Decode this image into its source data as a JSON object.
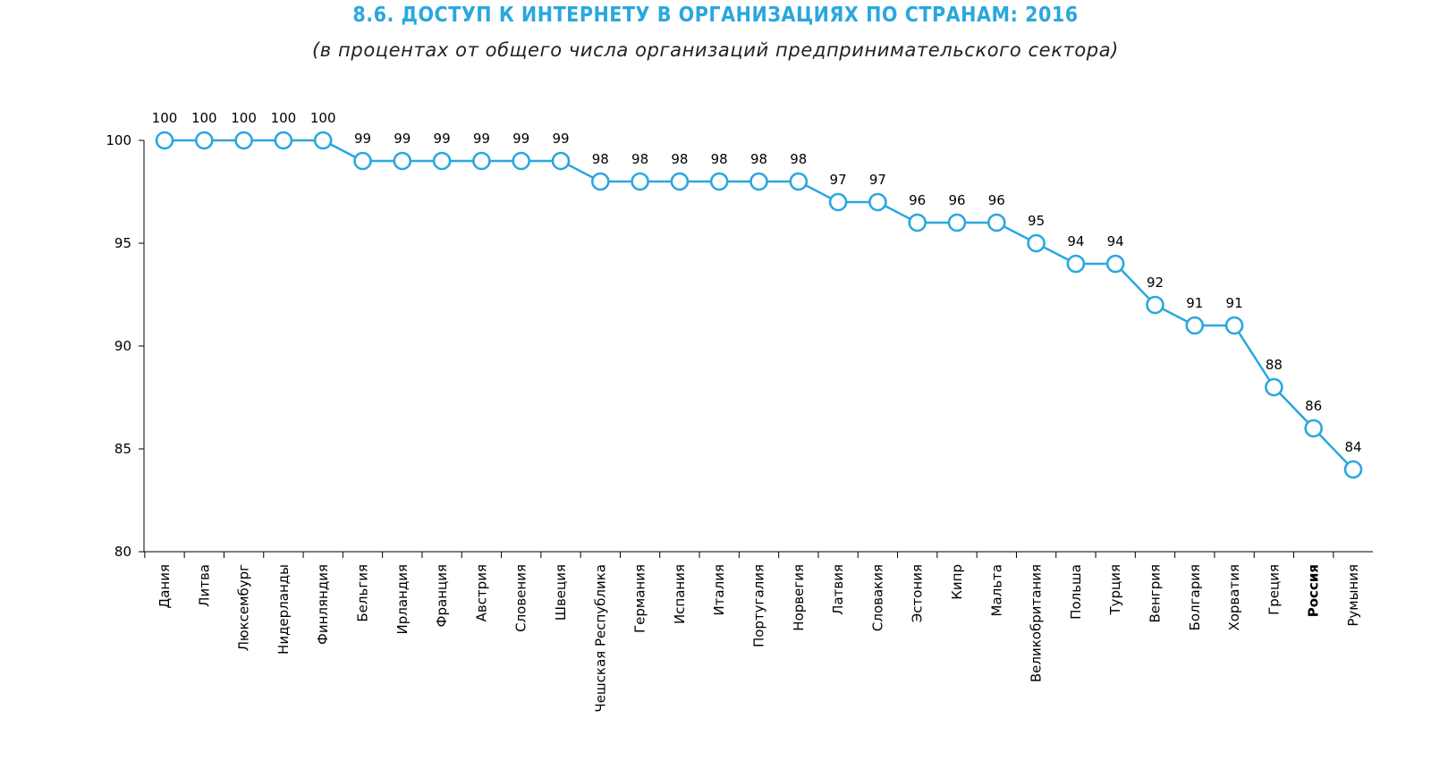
{
  "title": "8.6. ДОСТУП К ИНТЕРНЕТУ В ОРГАНИЗАЦИЯХ ПО СТРАНАМ: 2016",
  "subtitle": "(в процентах от общего числа организаций предпринимательского сектора)",
  "colors": {
    "accent": "#2aa7de",
    "line": "#2aa7de",
    "marker_fill": "#ffffff",
    "axis": "#000000"
  },
  "chart_data": {
    "type": "line",
    "title": "8.6. ДОСТУП К ИНТЕРНЕТУ В ОРГАНИЗАЦИЯХ ПО СТРАНАМ: 2016",
    "subtitle": "(в процентах от общего числа организаций предпринимательского сектора)",
    "xlabel": "",
    "ylabel": "",
    "ylim": [
      80,
      100
    ],
    "yticks": [
      80,
      85,
      90,
      95,
      100
    ],
    "grid": false,
    "legend": "none",
    "highlighted_category": "Россия",
    "categories": [
      "Дания",
      "Литва",
      "Люксембург",
      "Нидерланды",
      "Финляндия",
      "Бельгия",
      "Ирландия",
      "Франция",
      "Австрия",
      "Словения",
      "Швеция",
      "Чешская Республика",
      "Германия",
      "Испания",
      "Италия",
      "Португалия",
      "Норвегия",
      "Латвия",
      "Словакия",
      "Эстония",
      "Кипр",
      "Мальта",
      "Великобритания",
      "Польша",
      "Турция",
      "Венгрия",
      "Болгария",
      "Хорватия",
      "Греция",
      "Россия",
      "Румыния"
    ],
    "values": [
      100,
      100,
      100,
      100,
      100,
      99,
      99,
      99,
      99,
      99,
      99,
      98,
      98,
      98,
      98,
      98,
      98,
      97,
      97,
      96,
      96,
      96,
      95,
      94,
      94,
      92,
      91,
      91,
      88,
      86,
      84
    ]
  }
}
